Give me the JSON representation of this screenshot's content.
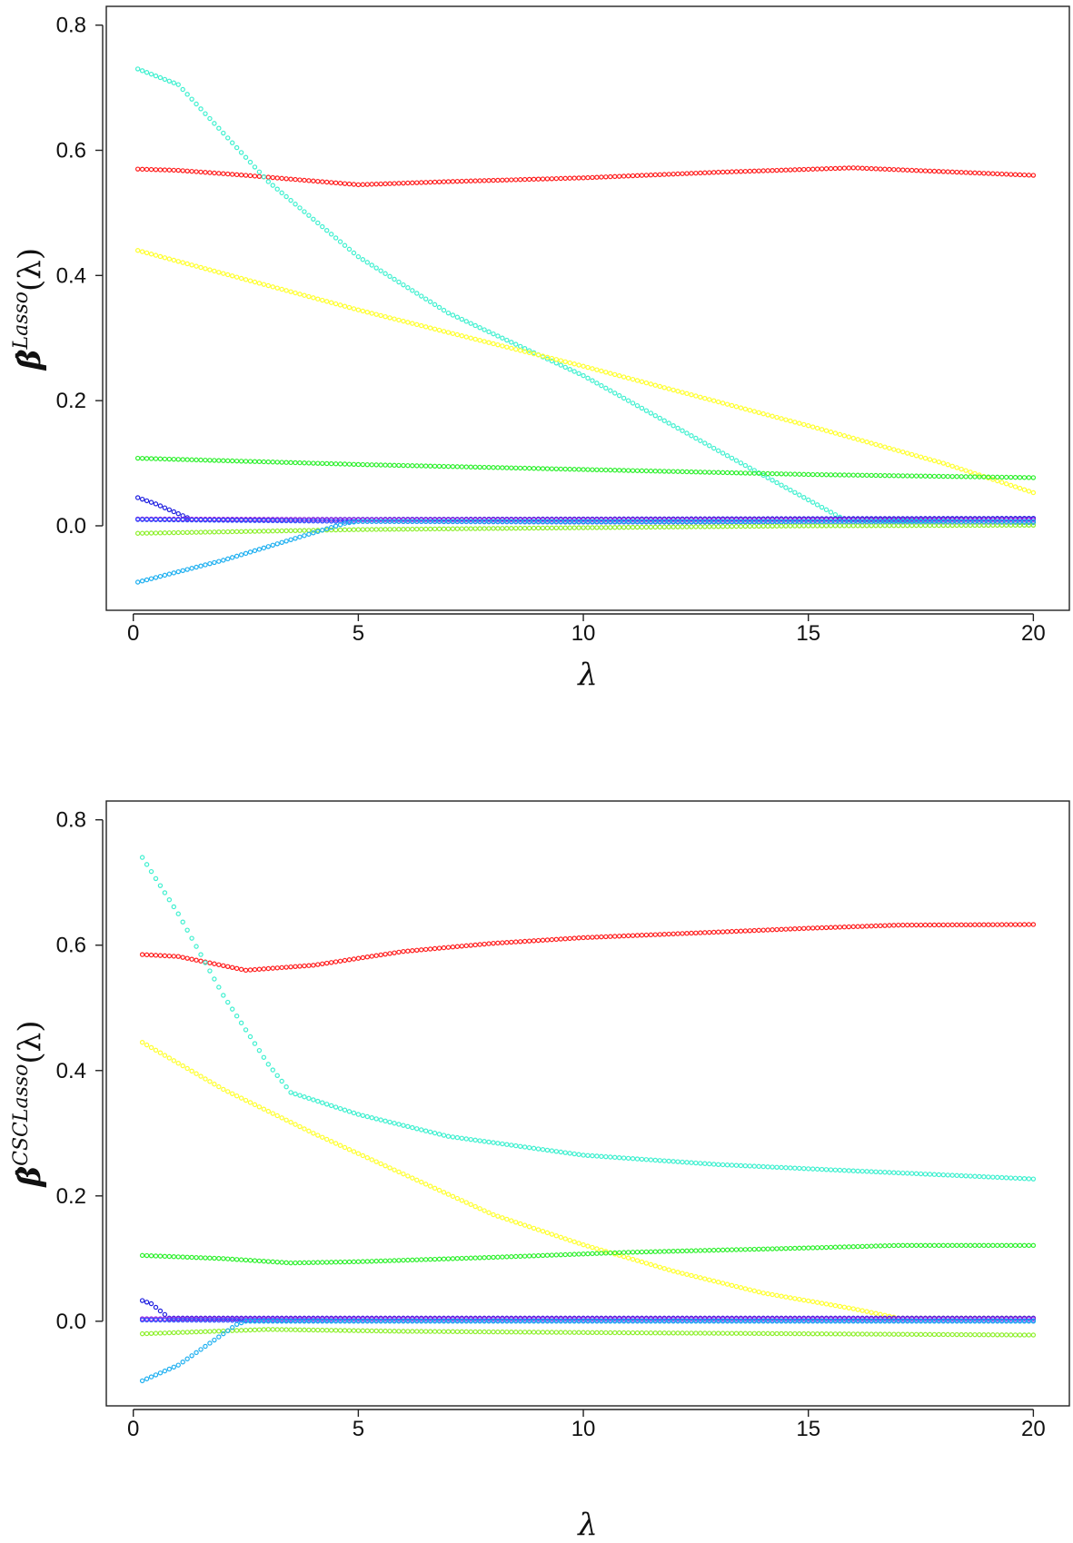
{
  "chart_data": [
    {
      "type": "scatter",
      "title": "",
      "xlabel": "λ",
      "ylabel": {
        "base": "β̂",
        "superscript": "Lasso",
        "suffix": "(λ)"
      },
      "xlim": [
        -0.6,
        20.8
      ],
      "ylim": [
        -0.135,
        0.83
      ],
      "xticks": [
        0,
        5,
        10,
        15,
        20
      ],
      "yticks": [
        0.0,
        0.2,
        0.4,
        0.6,
        0.8
      ],
      "ytick_labels": [
        "0.0",
        "0.2",
        "0.4",
        "0.6",
        "0.8"
      ],
      "grid": false,
      "legend": "none",
      "x": {
        "from": 0.1,
        "to": 20,
        "step": 0.1
      },
      "series": [
        {
          "color": "#ff2020",
          "knots": [
            [
              0.1,
              0.57
            ],
            [
              1,
              0.568
            ],
            [
              2.5,
              0.56
            ],
            [
              5,
              0.545
            ],
            [
              7,
              0.55
            ],
            [
              10,
              0.556
            ],
            [
              13,
              0.565
            ],
            [
              16,
              0.572
            ],
            [
              18,
              0.566
            ],
            [
              20,
              0.56
            ]
          ]
        },
        {
          "color": "#40f0d0",
          "knots": [
            [
              0.1,
              0.73
            ],
            [
              1,
              0.705
            ],
            [
              3,
              0.55
            ],
            [
              5,
              0.43
            ],
            [
              7,
              0.34
            ],
            [
              10,
              0.24
            ],
            [
              13,
              0.12
            ],
            [
              15.8,
              0.01
            ],
            [
              20,
              0.005
            ]
          ]
        },
        {
          "color": "#ffff30",
          "knots": [
            [
              0.1,
              0.44
            ],
            [
              5,
              0.345
            ],
            [
              10,
              0.255
            ],
            [
              15,
              0.16
            ],
            [
              18,
              0.1
            ],
            [
              20,
              0.053
            ]
          ]
        },
        {
          "color": "#30f030",
          "knots": [
            [
              0.1,
              0.108
            ],
            [
              5,
              0.098
            ],
            [
              10,
              0.09
            ],
            [
              15,
              0.082
            ],
            [
              20,
              0.077
            ]
          ]
        },
        {
          "color": "#2020e0",
          "knots": [
            [
              0.1,
              0.045
            ],
            [
              0.5,
              0.035
            ],
            [
              1.3,
              0.01
            ],
            [
              20,
              0.012
            ]
          ]
        },
        {
          "color": "#9020e0",
          "knots": [
            [
              0.1,
              0.011
            ],
            [
              5,
              0.01
            ],
            [
              10,
              0.01
            ],
            [
              20,
              0.01
            ]
          ]
        },
        {
          "color": "#3050ff",
          "knots": [
            [
              0.1,
              0.01
            ],
            [
              5,
              0.007
            ],
            [
              10,
              0.006
            ],
            [
              20,
              0.006
            ]
          ]
        },
        {
          "color": "#90f030",
          "knots": [
            [
              0.1,
              -0.012
            ],
            [
              5,
              -0.006
            ],
            [
              10,
              -0.003
            ],
            [
              15,
              0.0
            ],
            [
              20,
              0.001
            ]
          ]
        },
        {
          "color": "#20b0f0",
          "knots": [
            [
              0.1,
              -0.09
            ],
            [
              2,
              -0.055
            ],
            [
              4.7,
              0.004
            ],
            [
              5,
              0.007
            ],
            [
              10,
              0.007
            ],
            [
              20,
              0.007
            ]
          ]
        }
      ]
    },
    {
      "type": "scatter",
      "title": "",
      "xlabel": "λ",
      "ylabel": {
        "base": "β̂",
        "superscript": "CSCLasso",
        "suffix": "(λ)"
      },
      "xlim": [
        -0.6,
        20.8
      ],
      "ylim": [
        -0.135,
        0.83
      ],
      "xticks": [
        0,
        5,
        10,
        15,
        20
      ],
      "yticks": [
        0.0,
        0.2,
        0.4,
        0.6,
        0.8
      ],
      "ytick_labels": [
        "0.0",
        "0.2",
        "0.4",
        "0.6",
        "0.8"
      ],
      "grid": false,
      "legend": "none",
      "x": {
        "from": 0.2,
        "to": 20,
        "step": 0.1
      },
      "series": [
        {
          "color": "#ff2020",
          "knots": [
            [
              0.2,
              0.585
            ],
            [
              1,
              0.582
            ],
            [
              2.5,
              0.56
            ],
            [
              4,
              0.568
            ],
            [
              6,
              0.59
            ],
            [
              8,
              0.603
            ],
            [
              10,
              0.612
            ],
            [
              12,
              0.618
            ],
            [
              15,
              0.627
            ],
            [
              17,
              0.632
            ],
            [
              20,
              0.633
            ]
          ]
        },
        {
          "color": "#40f0d0",
          "knots": [
            [
              0.2,
              0.74
            ],
            [
              1,
              0.65
            ],
            [
              2,
              0.52
            ],
            [
              3,
              0.41
            ],
            [
              3.5,
              0.365
            ],
            [
              5,
              0.33
            ],
            [
              7,
              0.295
            ],
            [
              10,
              0.265
            ],
            [
              13,
              0.25
            ],
            [
              16,
              0.24
            ],
            [
              20,
              0.227
            ]
          ]
        },
        {
          "color": "#ffff30",
          "knots": [
            [
              0.2,
              0.445
            ],
            [
              2,
              0.37
            ],
            [
              4,
              0.3
            ],
            [
              6,
              0.235
            ],
            [
              8,
              0.17
            ],
            [
              10,
              0.122
            ],
            [
              12,
              0.08
            ],
            [
              14,
              0.045
            ],
            [
              16,
              0.02
            ],
            [
              17,
              0.005
            ],
            [
              20,
              0.005
            ]
          ]
        },
        {
          "color": "#30f030",
          "knots": [
            [
              0.2,
              0.105
            ],
            [
              2,
              0.1
            ],
            [
              3.5,
              0.093
            ],
            [
              5,
              0.095
            ],
            [
              8,
              0.102
            ],
            [
              11,
              0.11
            ],
            [
              15,
              0.117
            ],
            [
              17,
              0.121
            ],
            [
              20,
              0.121
            ]
          ]
        },
        {
          "color": "#2020e0",
          "knots": [
            [
              0.2,
              0.033
            ],
            [
              0.4,
              0.028
            ],
            [
              0.8,
              0.005
            ],
            [
              20,
              0.005
            ]
          ]
        },
        {
          "color": "#9020e0",
          "knots": [
            [
              0.2,
              0.004
            ],
            [
              10,
              0.004
            ],
            [
              20,
              0.004
            ]
          ]
        },
        {
          "color": "#3050ff",
          "knots": [
            [
              0.2,
              0.002
            ],
            [
              5,
              0.001
            ],
            [
              10,
              0.001
            ],
            [
              20,
              0.001
            ]
          ]
        },
        {
          "color": "#90f030",
          "knots": [
            [
              0.2,
              -0.02
            ],
            [
              3,
              -0.013
            ],
            [
              6,
              -0.016
            ],
            [
              10,
              -0.018
            ],
            [
              15,
              -0.02
            ],
            [
              20,
              -0.022
            ]
          ]
        },
        {
          "color": "#20b0f0",
          "knots": [
            [
              0.2,
              -0.095
            ],
            [
              1,
              -0.07
            ],
            [
              2.3,
              -0.005
            ],
            [
              2.5,
              0.0
            ],
            [
              10,
              0.0
            ],
            [
              20,
              0.0
            ]
          ]
        }
      ]
    }
  ]
}
